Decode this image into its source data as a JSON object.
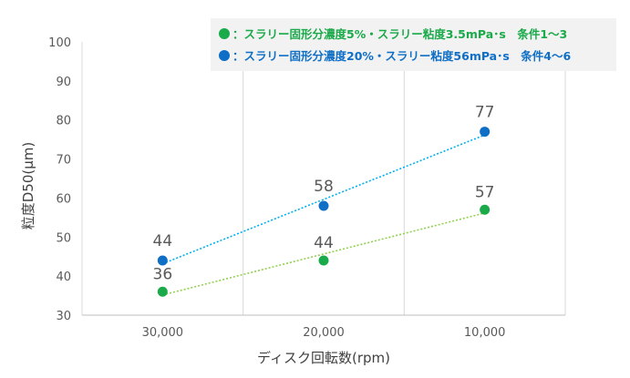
{
  "chart_data": {
    "type": "scatter",
    "title": "",
    "xlabel": "ディスク回転数(rpm)",
    "ylabel": "粒度D50(μm)",
    "categories": [
      "30,000",
      "20,000",
      "10,000"
    ],
    "yticks": [
      "100",
      "90",
      "80",
      "70",
      "60",
      "50",
      "40",
      "30"
    ],
    "ylim": [
      30,
      100
    ],
    "grid": "vertical",
    "legend_position": "top-right",
    "series": [
      {
        "name": "：スラリー固形分濃度5%・スラリー粘度3.5mPa･s　条件1～3",
        "color": "#1aaa4a",
        "values": [
          36,
          44,
          57
        ],
        "labels": [
          "36",
          "44",
          "57"
        ],
        "trendline": "dotted"
      },
      {
        "name": "：スラリー固形分濃度20%・スラリー粘度56mPa･s　条件4～6",
        "color": "#0f6fc6",
        "values": [
          44,
          58,
          77
        ],
        "labels": [
          "44",
          "58",
          "77"
        ],
        "trendline": "dotted"
      }
    ],
    "colors": {
      "series1_trend": "#92d050",
      "series2_trend": "#00b0f0",
      "legend_bg": "#f2f2f2",
      "grid": "#d9d9d9",
      "axis": "#bfbfbf"
    }
  }
}
